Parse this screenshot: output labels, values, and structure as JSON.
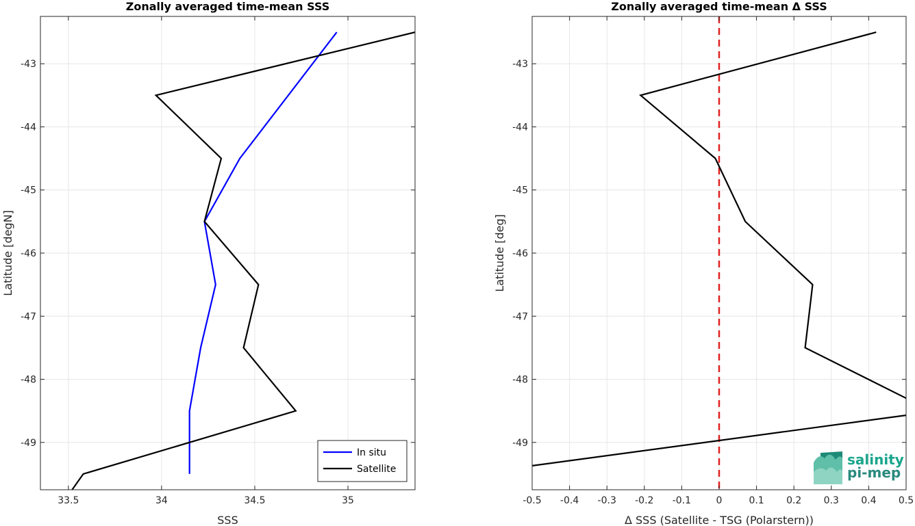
{
  "chart_data": [
    {
      "type": "line",
      "title": "Zonally averaged time-mean SSS",
      "xlabel": "SSS",
      "ylabel": "Latitude [degN]",
      "xlim": [
        33.35,
        35.36
      ],
      "ylim": [
        -49.75,
        -42.25
      ],
      "xticks": [
        33.5,
        34,
        34.5,
        35
      ],
      "xtick_labels": [
        "33.5",
        "34",
        "34.5",
        "35"
      ],
      "yticks": [
        -49,
        -48,
        -47,
        -46,
        -45,
        -44,
        -43
      ],
      "ytick_labels": [
        "-49",
        "-48",
        "-47",
        "-46",
        "-45",
        "-44",
        "-43"
      ],
      "grid": true,
      "legend_position": "bottom-right",
      "series": [
        {
          "name": "In situ",
          "color": "#0000ff",
          "x": [
            34.94,
            34.42,
            34.23,
            34.29,
            34.21,
            34.15,
            34.15
          ],
          "y": [
            -42.5,
            -44.5,
            -45.5,
            -46.5,
            -47.5,
            -48.5,
            -49.5
          ]
        },
        {
          "name": "Satellite",
          "color": "#000000",
          "x": [
            35.36,
            33.97,
            34.32,
            34.23,
            34.52,
            34.44,
            34.72,
            33.58,
            33.52
          ],
          "y": [
            -42.5,
            -43.5,
            -44.5,
            -45.5,
            -46.5,
            -47.5,
            -48.5,
            -49.5,
            -49.75
          ]
        }
      ]
    },
    {
      "type": "line",
      "title": "Zonally averaged time-mean Δ SSS",
      "xlabel": "Δ SSS (Satellite - TSG (Polarstern))",
      "ylabel": "Latitude [deg]",
      "xlim": [
        -0.5,
        0.5
      ],
      "ylim": [
        -49.75,
        -42.25
      ],
      "xticks": [
        -0.5,
        -0.4,
        -0.3,
        -0.2,
        -0.1,
        0,
        0.1,
        0.2,
        0.3,
        0.4,
        0.5
      ],
      "xtick_labels": [
        "-0.5",
        "-0.4",
        "-0.3",
        "-0.2",
        "-0.1",
        "0",
        "0.1",
        "0.2",
        "0.3",
        "0.4",
        "0.5"
      ],
      "yticks": [
        -49,
        -48,
        -47,
        -46,
        -45,
        -44,
        -43
      ],
      "ytick_labels": [
        "-49",
        "-48",
        "-47",
        "-46",
        "-45",
        "-44",
        "-43"
      ],
      "grid": true,
      "reference_line": {
        "x": 0,
        "color": "#e02020",
        "style": "dashed"
      },
      "series": [
        {
          "color": "#000000",
          "x": [
            0.42,
            -0.21,
            -0.01,
            0.07,
            0.25,
            0.23,
            0.5
          ],
          "y": [
            -42.5,
            -43.5,
            -44.5,
            -45.5,
            -46.5,
            -47.5,
            -48.3
          ]
        },
        {
          "color": "#000000",
          "x": [
            0.5,
            -0.5
          ],
          "y": [
            -48.57,
            -49.37
          ]
        }
      ]
    }
  ],
  "logo": {
    "line1": "salinity",
    "line2": "pi-mep",
    "colors": {
      "line1": "#1aa58c",
      "line2": "#2a8a7e",
      "mark_dark": "#1e8a78",
      "mark_light": "#8fd4c2"
    }
  }
}
